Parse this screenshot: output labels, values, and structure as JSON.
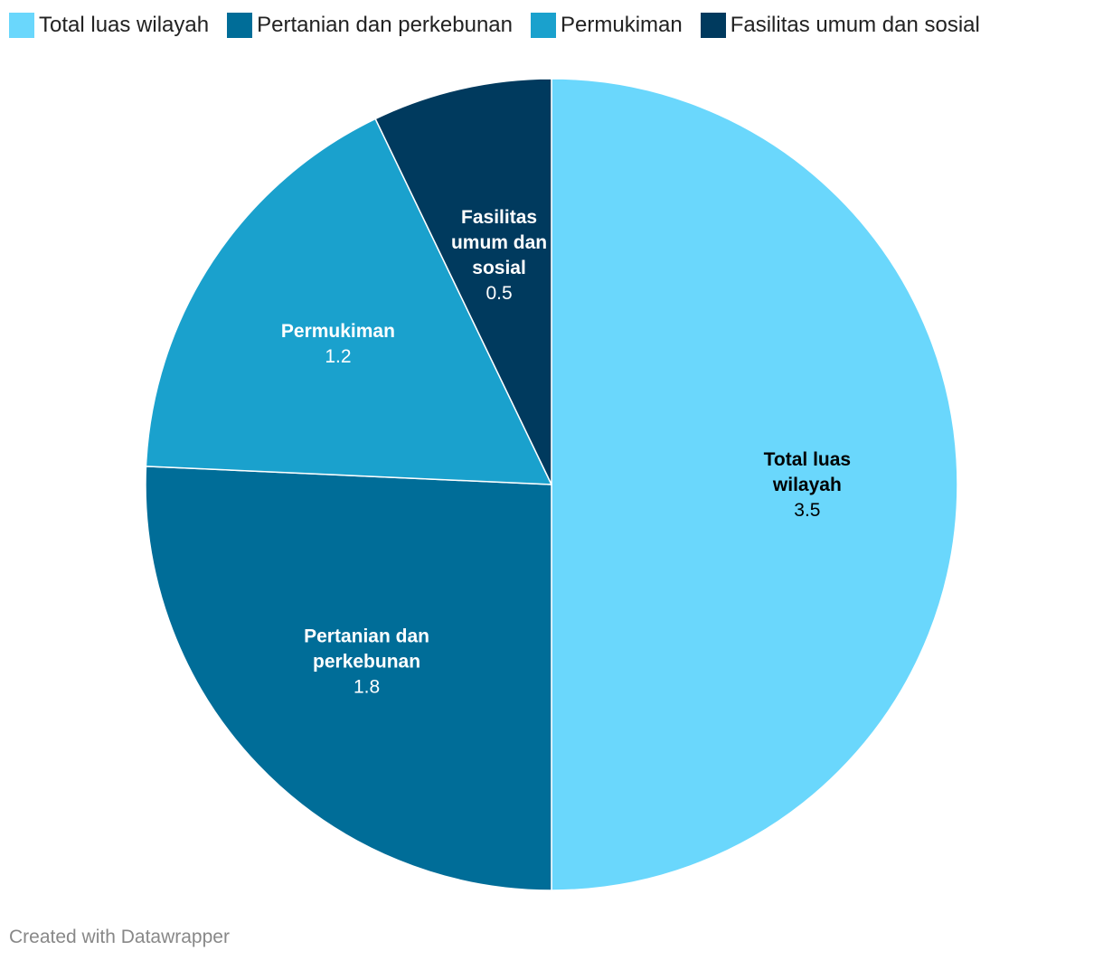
{
  "chart_data": {
    "type": "pie",
    "title": "",
    "slices": [
      {
        "label": "Total luas wilayah",
        "value": 3.5,
        "value_label": "3.5",
        "label_lines": [
          "Total luas",
          "wilayah"
        ],
        "color": "#6AD7FC",
        "text_color": "#000000"
      },
      {
        "label": "Pertanian dan perkebunan",
        "value": 1.8,
        "value_label": "1.8",
        "label_lines": [
          "Pertanian dan",
          "perkebunan"
        ],
        "color": "#006D98",
        "text_color": "#ffffff"
      },
      {
        "label": "Permukiman",
        "value": 1.2,
        "value_label": "1.2",
        "label_lines": [
          "Permukiman"
        ],
        "color": "#1AA1CD",
        "text_color": "#ffffff"
      },
      {
        "label": "Fasilitas umum dan sosial",
        "value": 0.5,
        "value_label": "0.5",
        "label_lines": [
          "Fasilitas",
          "umum dan",
          "sosial"
        ],
        "color": "#003A5E",
        "text_color": "#ffffff"
      }
    ],
    "legend_position": "top-left"
  },
  "footer": {
    "credit": "Created with Datawrapper"
  }
}
